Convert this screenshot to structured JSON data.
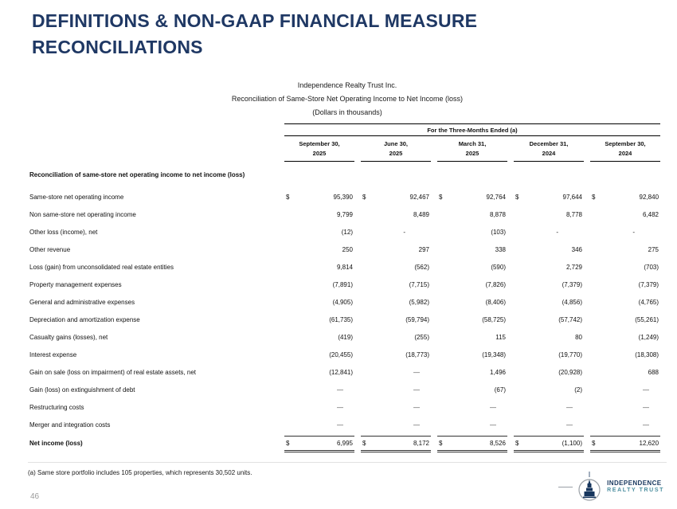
{
  "page": {
    "title": "DEFINITIONS & NON-GAAP FINANCIAL MEASURE RECONCILIATIONS",
    "page_number": "46"
  },
  "table": {
    "heading_lines": [
      "Independence Realty Trust Inc.",
      "Reconciliation of Same-Store Net Operating Income to Net Income (loss)",
      "(Dollars in thousands)"
    ],
    "span_header": "For the Three-Months Ended (a)",
    "columns": [
      {
        "line1": "September 30,",
        "line2": "2025"
      },
      {
        "line1": "June 30,",
        "line2": "2025"
      },
      {
        "line1": "March 31,",
        "line2": "2025"
      },
      {
        "line1": "December 31,",
        "line2": "2024"
      },
      {
        "line1": "September 30,",
        "line2": "2024"
      }
    ],
    "section_header": "Reconciliation of same-store net operating income to net income (loss)",
    "rows": [
      {
        "label": "Same-store net operating income",
        "dollar": true,
        "values": [
          "95,390",
          "92,467",
          "92,764",
          "97,644",
          "92,840"
        ]
      },
      {
        "label": "Non same-store net operating income",
        "values": [
          "9,799",
          "8,489",
          "8,878",
          "8,778",
          "6,482"
        ]
      },
      {
        "label": "Other loss (income), net",
        "values": [
          "(12)",
          "-",
          "(103)",
          "-",
          "-"
        ]
      },
      {
        "label": "Other revenue",
        "values": [
          "250",
          "297",
          "338",
          "346",
          "275"
        ]
      },
      {
        "label": "Loss (gain) from unconsolidated real estate entities",
        "values": [
          "9,814",
          "(562)",
          "(590)",
          "2,729",
          "(703)"
        ]
      },
      {
        "label": "Property management expenses",
        "values": [
          "(7,891)",
          "(7,715)",
          "(7,826)",
          "(7,379)",
          "(7,379)"
        ]
      },
      {
        "label": "General and administrative expenses",
        "values": [
          "(4,905)",
          "(5,982)",
          "(8,406)",
          "(4,856)",
          "(4,765)"
        ]
      },
      {
        "label": "Depreciation and amortization expense",
        "values": [
          "(61,735)",
          "(59,794)",
          "(58,725)",
          "(57,742)",
          "(55,261)"
        ]
      },
      {
        "label": "Casualty gains (losses), net",
        "values": [
          "(419)",
          "(255)",
          "115",
          "80",
          "(1,249)"
        ]
      },
      {
        "label": "Interest expense",
        "values": [
          "(20,455)",
          "(18,773)",
          "(19,348)",
          "(19,770)",
          "(18,308)"
        ]
      },
      {
        "label": "Gain on sale (loss on impairment) of real estate assets, net",
        "values": [
          "(12,841)",
          "—",
          "1,496",
          "(20,928)",
          "688"
        ]
      },
      {
        "label": "Gain (loss) on extinguishment of debt",
        "values": [
          "—",
          "—",
          "(67)",
          "(2)",
          "—"
        ]
      },
      {
        "label": "Restructuring costs",
        "values": [
          "—",
          "—",
          "—",
          "—",
          "—"
        ]
      },
      {
        "label": "Merger and integration costs",
        "values": [
          "—",
          "—",
          "—",
          "—",
          "—"
        ]
      }
    ],
    "total_row": {
      "label": "Net income (loss)",
      "dollar": true,
      "values": [
        "6,995",
        "8,172",
        "8,526",
        "(1,100)",
        "12,620"
      ]
    },
    "footnote": "(a) Same store portfolio includes 105 properties, which represents 30,502 units.",
    "currency_symbol": "$"
  },
  "logo": {
    "line1": "INDEPENDENCE",
    "line2": "REALTY TRUST",
    "navy": "#17365d",
    "teal": "#4d8fa0",
    "circle_gray": "#9aa0a6"
  }
}
